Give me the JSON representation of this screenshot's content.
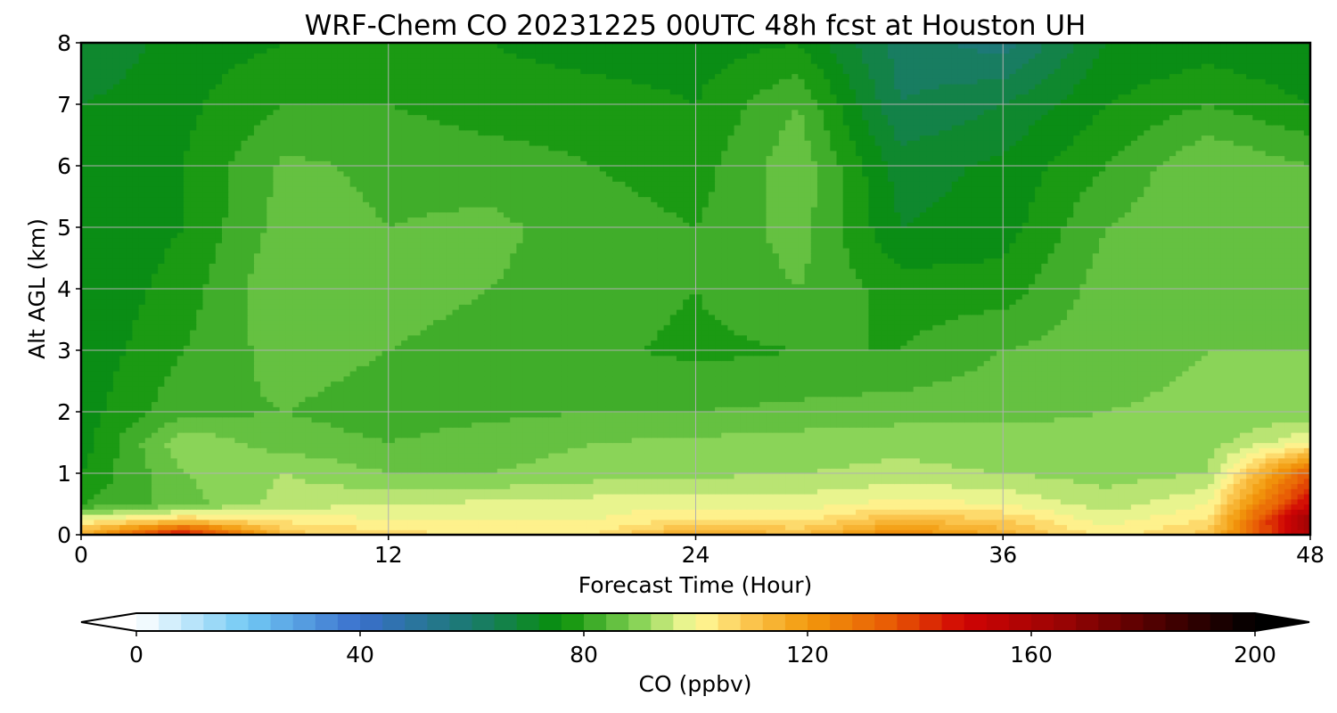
{
  "chart_data": {
    "type": "heatmap",
    "title": "WRF-Chem CO  20231225 00UTC 48h fcst at Houston UH",
    "xlabel": "Forecast Time (Hour)",
    "ylabel": "Alt AGL (km)",
    "xlim": [
      0,
      48
    ],
    "ylim": [
      0,
      8
    ],
    "xticks": [
      "0",
      "12",
      "24",
      "36",
      "48"
    ],
    "yticks": [
      "0",
      "1",
      "2",
      "3",
      "4",
      "5",
      "6",
      "7",
      "8"
    ],
    "grid": true,
    "times_hour": [
      0,
      4,
      8,
      12,
      16,
      20,
      24,
      28,
      32,
      36,
      40,
      44,
      48
    ],
    "heights_km": [
      0,
      0.25,
      0.5,
      1,
      1.5,
      2,
      3,
      4,
      5,
      6,
      7,
      8
    ],
    "values": [
      [
        115,
        150,
        110,
        106,
        103,
        104,
        118,
        112,
        125,
        115,
        102,
        110,
        160
      ],
      [
        100,
        108,
        103,
        100,
        100,
        100,
        104,
        103,
        112,
        108,
        98,
        104,
        165
      ],
      [
        80,
        86,
        94,
        96,
        97,
        98,
        99,
        98,
        102,
        100,
        94,
        100,
        150
      ],
      [
        76,
        88,
        92,
        88,
        88,
        90,
        91,
        92,
        93,
        92,
        90,
        92,
        135
      ],
      [
        74,
        91,
        86,
        84,
        86,
        88,
        89,
        90,
        91,
        90,
        89,
        90,
        100
      ],
      [
        74,
        83,
        84,
        82,
        83,
        84,
        84,
        85,
        86,
        87,
        88,
        89,
        89
      ],
      [
        73,
        80,
        86,
        84,
        82,
        81,
        79,
        80,
        80,
        84,
        86,
        88,
        88
      ],
      [
        72,
        78,
        88,
        86,
        84,
        82,
        80,
        84,
        78,
        78,
        86,
        88,
        87
      ],
      [
        72,
        76,
        86,
        84,
        85,
        82,
        80,
        86,
        72,
        74,
        84,
        88,
        86
      ],
      [
        73,
        76,
        85,
        83,
        82,
        80,
        78,
        87,
        70,
        73,
        80,
        88,
        84
      ],
      [
        72,
        75,
        80,
        80,
        78,
        78,
        76,
        84,
        64,
        68,
        76,
        80,
        76
      ],
      [
        68,
        74,
        76,
        76,
        76,
        74,
        74,
        76,
        62,
        58,
        72,
        74,
        72
      ]
    ],
    "colorbar": {
      "label": "CO  (ppbv)",
      "min": 0,
      "max": 200,
      "step": 4,
      "ticks": [
        "0",
        "40",
        "80",
        "120",
        "160",
        "200"
      ],
      "extend": "both",
      "colors": [
        {
          "v": 0,
          "c": "#ffffff"
        },
        {
          "v": 20,
          "c": "#70c8f4"
        },
        {
          "v": 40,
          "c": "#3a6fcc"
        },
        {
          "v": 60,
          "c": "#1a7a6e"
        },
        {
          "v": 76,
          "c": "#089008"
        },
        {
          "v": 90,
          "c": "#8ad458"
        },
        {
          "v": 100,
          "c": "#fffc9c"
        },
        {
          "v": 110,
          "c": "#fbc44c"
        },
        {
          "v": 120,
          "c": "#f29a0c"
        },
        {
          "v": 135,
          "c": "#e85a04"
        },
        {
          "v": 148,
          "c": "#d00404"
        },
        {
          "v": 165,
          "c": "#9c0404"
        },
        {
          "v": 185,
          "c": "#420000"
        },
        {
          "v": 200,
          "c": "#000000"
        }
      ]
    }
  }
}
